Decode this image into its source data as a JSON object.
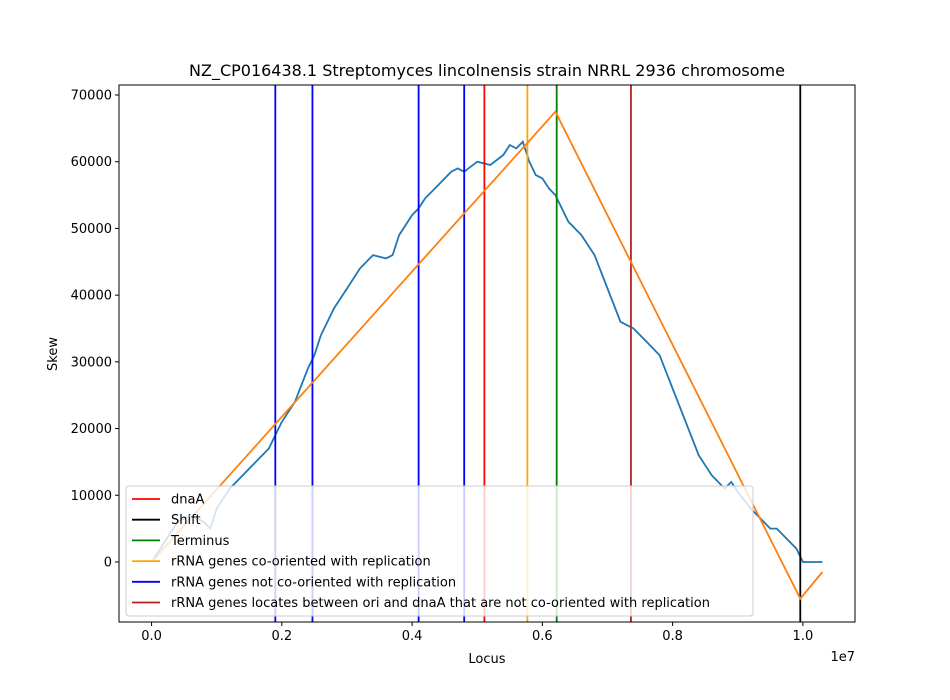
{
  "chart_data": {
    "type": "line",
    "title": "NZ_CP016438.1 Streptomyces lincolnensis strain NRRL 2936 chromosome",
    "xlabel": "Locus",
    "ylabel": "Skew",
    "x_offset_label": "1e7",
    "xlim": [
      -0.05,
      1.08
    ],
    "ylim": [
      -9000,
      71500
    ],
    "x_ticks": [
      0.0,
      0.2,
      0.4,
      0.6,
      0.8,
      1.0
    ],
    "x_tick_labels": [
      "0.0",
      "0.2",
      "0.4",
      "0.6",
      "0.8",
      "1.0"
    ],
    "y_ticks": [
      0,
      10000,
      20000,
      30000,
      40000,
      50000,
      60000,
      70000
    ],
    "y_tick_labels": [
      "0",
      "10000",
      "20000",
      "30000",
      "40000",
      "50000",
      "60000",
      "70000"
    ],
    "grid": false,
    "legend_position": "lower-left",
    "skew_series": {
      "name": "",
      "color": "#1f77b4",
      "x": [
        0.0,
        0.02,
        0.04,
        0.06,
        0.08,
        0.09,
        0.1,
        0.12,
        0.14,
        0.16,
        0.18,
        0.19,
        0.2,
        0.22,
        0.24,
        0.25,
        0.26,
        0.28,
        0.3,
        0.32,
        0.34,
        0.36,
        0.37,
        0.38,
        0.4,
        0.41,
        0.42,
        0.44,
        0.46,
        0.47,
        0.48,
        0.5,
        0.52,
        0.54,
        0.55,
        0.56,
        0.57,
        0.58,
        0.59,
        0.6,
        0.61,
        0.62,
        0.64,
        0.66,
        0.68,
        0.7,
        0.72,
        0.74,
        0.76,
        0.78,
        0.8,
        0.82,
        0.84,
        0.86,
        0.88,
        0.89,
        0.9,
        0.92,
        0.94,
        0.95,
        0.96,
        0.98,
        0.99,
        1.0,
        1.01,
        1.02,
        1.03
      ],
      "y": [
        0,
        3000,
        6000,
        7000,
        6000,
        5000,
        8000,
        11000,
        13000,
        15000,
        17000,
        19000,
        21000,
        24000,
        29000,
        31000,
        34000,
        38000,
        41000,
        44000,
        46000,
        45500,
        46000,
        49000,
        52000,
        53000,
        54500,
        56500,
        58500,
        59000,
        58500,
        60000,
        59500,
        61000,
        62500,
        62000,
        63000,
        60000,
        58000,
        57500,
        56000,
        55000,
        51000,
        49000,
        46000,
        41000,
        36000,
        35000,
        33000,
        31000,
        26000,
        21000,
        16000,
        13000,
        11000,
        12000,
        10500,
        8000,
        6000,
        5000,
        5000,
        3000,
        2000,
        0,
        0,
        0,
        0
      ]
    },
    "model_series": {
      "name": "",
      "color": "#ff7f0e",
      "x": [
        0.0,
        0.62,
        0.996,
        1.03
      ],
      "y": [
        0,
        67500,
        -5500,
        -1500
      ]
    },
    "vlines": [
      {
        "x": 0.19,
        "color": "#0000ff"
      },
      {
        "x": 0.247,
        "color": "#0000ff"
      },
      {
        "x": 0.41,
        "color": "#0000ff"
      },
      {
        "x": 0.48,
        "color": "#0000ff"
      },
      {
        "x": 0.511,
        "color": "#ff0000"
      },
      {
        "x": 0.577,
        "color": "#ffa500"
      },
      {
        "x": 0.622,
        "color": "#008000"
      },
      {
        "x": 0.736,
        "color": "#b22222"
      },
      {
        "x": 0.996,
        "color": "#000000"
      }
    ],
    "legend": [
      {
        "label": "dnaA",
        "color": "#ff0000"
      },
      {
        "label": "Shift",
        "color": "#000000"
      },
      {
        "label": "Terminus",
        "color": "#008000"
      },
      {
        "label": "rRNA genes co-oriented with replication",
        "color": "#ffa500"
      },
      {
        "label": "rRNA genes not co-oriented with replication",
        "color": "#0000ff"
      },
      {
        "label": "rRNA genes locates between ori and dnaA that are not co-oriented with replication",
        "color": "#b22222"
      }
    ]
  }
}
